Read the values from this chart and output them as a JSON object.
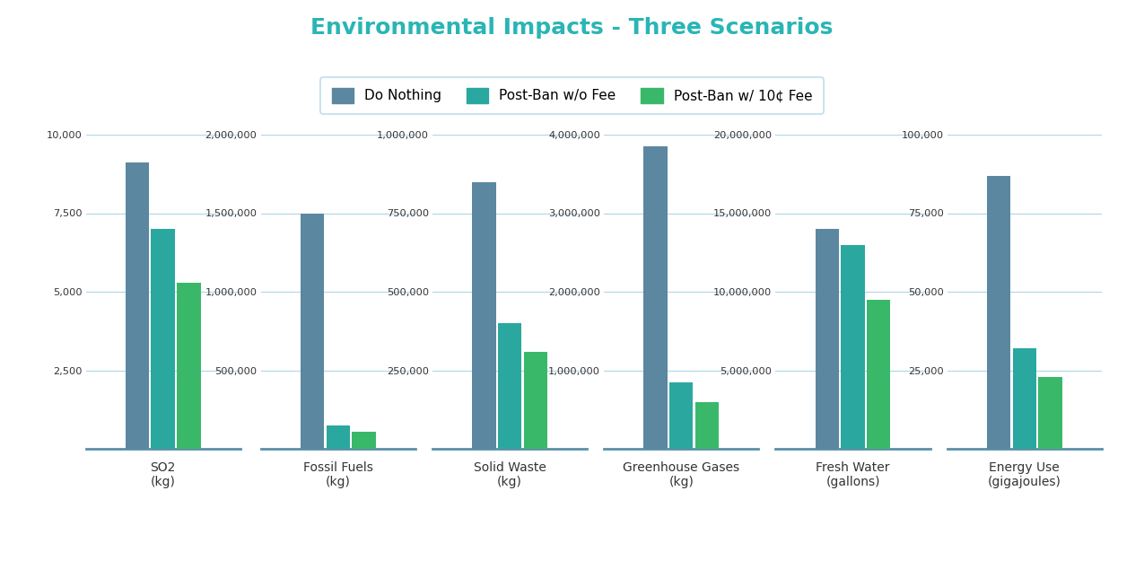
{
  "title": "Environmental Impacts - Three Scenarios",
  "title_color": "#2ab5b5",
  "categories": [
    [
      "SO2",
      "(kg)"
    ],
    [
      "Fossil Fuels",
      "(kg)"
    ],
    [
      "Solid Waste",
      "(kg)"
    ],
    [
      "Greenhouse Gases",
      "(kg)"
    ],
    [
      "Fresh Water",
      "(gallons)"
    ],
    [
      "Energy Use",
      "(gigajoules)"
    ]
  ],
  "series_keys": [
    "Do Nothing",
    "Post-Ban w/o Fee",
    "Post-Ban w/ 10c Fee"
  ],
  "legend_labels": [
    "Do Nothing",
    "Post-Ban w/o Fee",
    "Post-Ban w/ 10¢ Fee"
  ],
  "series_values": {
    "Do Nothing": [
      9100,
      1500000,
      850000,
      3850000,
      14000000,
      87000
    ],
    "Post-Ban w/o Fee": [
      7000,
      150000,
      400000,
      850000,
      13000000,
      32000
    ],
    "Post-Ban w/ 10c Fee": [
      5300,
      110000,
      310000,
      600000,
      9500000,
      23000
    ]
  },
  "colors": {
    "Do Nothing": "#5b87a0",
    "Post-Ban w/o Fee": "#2aa8a0",
    "Post-Ban w/ 10c Fee": "#3ab86a"
  },
  "y_scales": [
    {
      "max": 10000,
      "ticks": [
        0,
        2500,
        5000,
        7500,
        10000
      ]
    },
    {
      "max": 2000000,
      "ticks": [
        0,
        500000,
        1000000,
        1500000,
        2000000
      ]
    },
    {
      "max": 1000000,
      "ticks": [
        0,
        250000,
        500000,
        750000,
        1000000
      ]
    },
    {
      "max": 4000000,
      "ticks": [
        0,
        1000000,
        2000000,
        3000000,
        4000000
      ]
    },
    {
      "max": 20000000,
      "ticks": [
        0,
        5000000,
        10000000,
        15000000,
        20000000
      ]
    },
    {
      "max": 100000,
      "ticks": [
        0,
        25000,
        50000,
        75000,
        100000
      ]
    }
  ],
  "background_color": "#ffffff",
  "grid_color": "#aed6e8",
  "axis_line_color": "#5b8fa8",
  "bar_width": 0.22,
  "figsize": [
    12.75,
    6.25
  ],
  "dpi": 100
}
